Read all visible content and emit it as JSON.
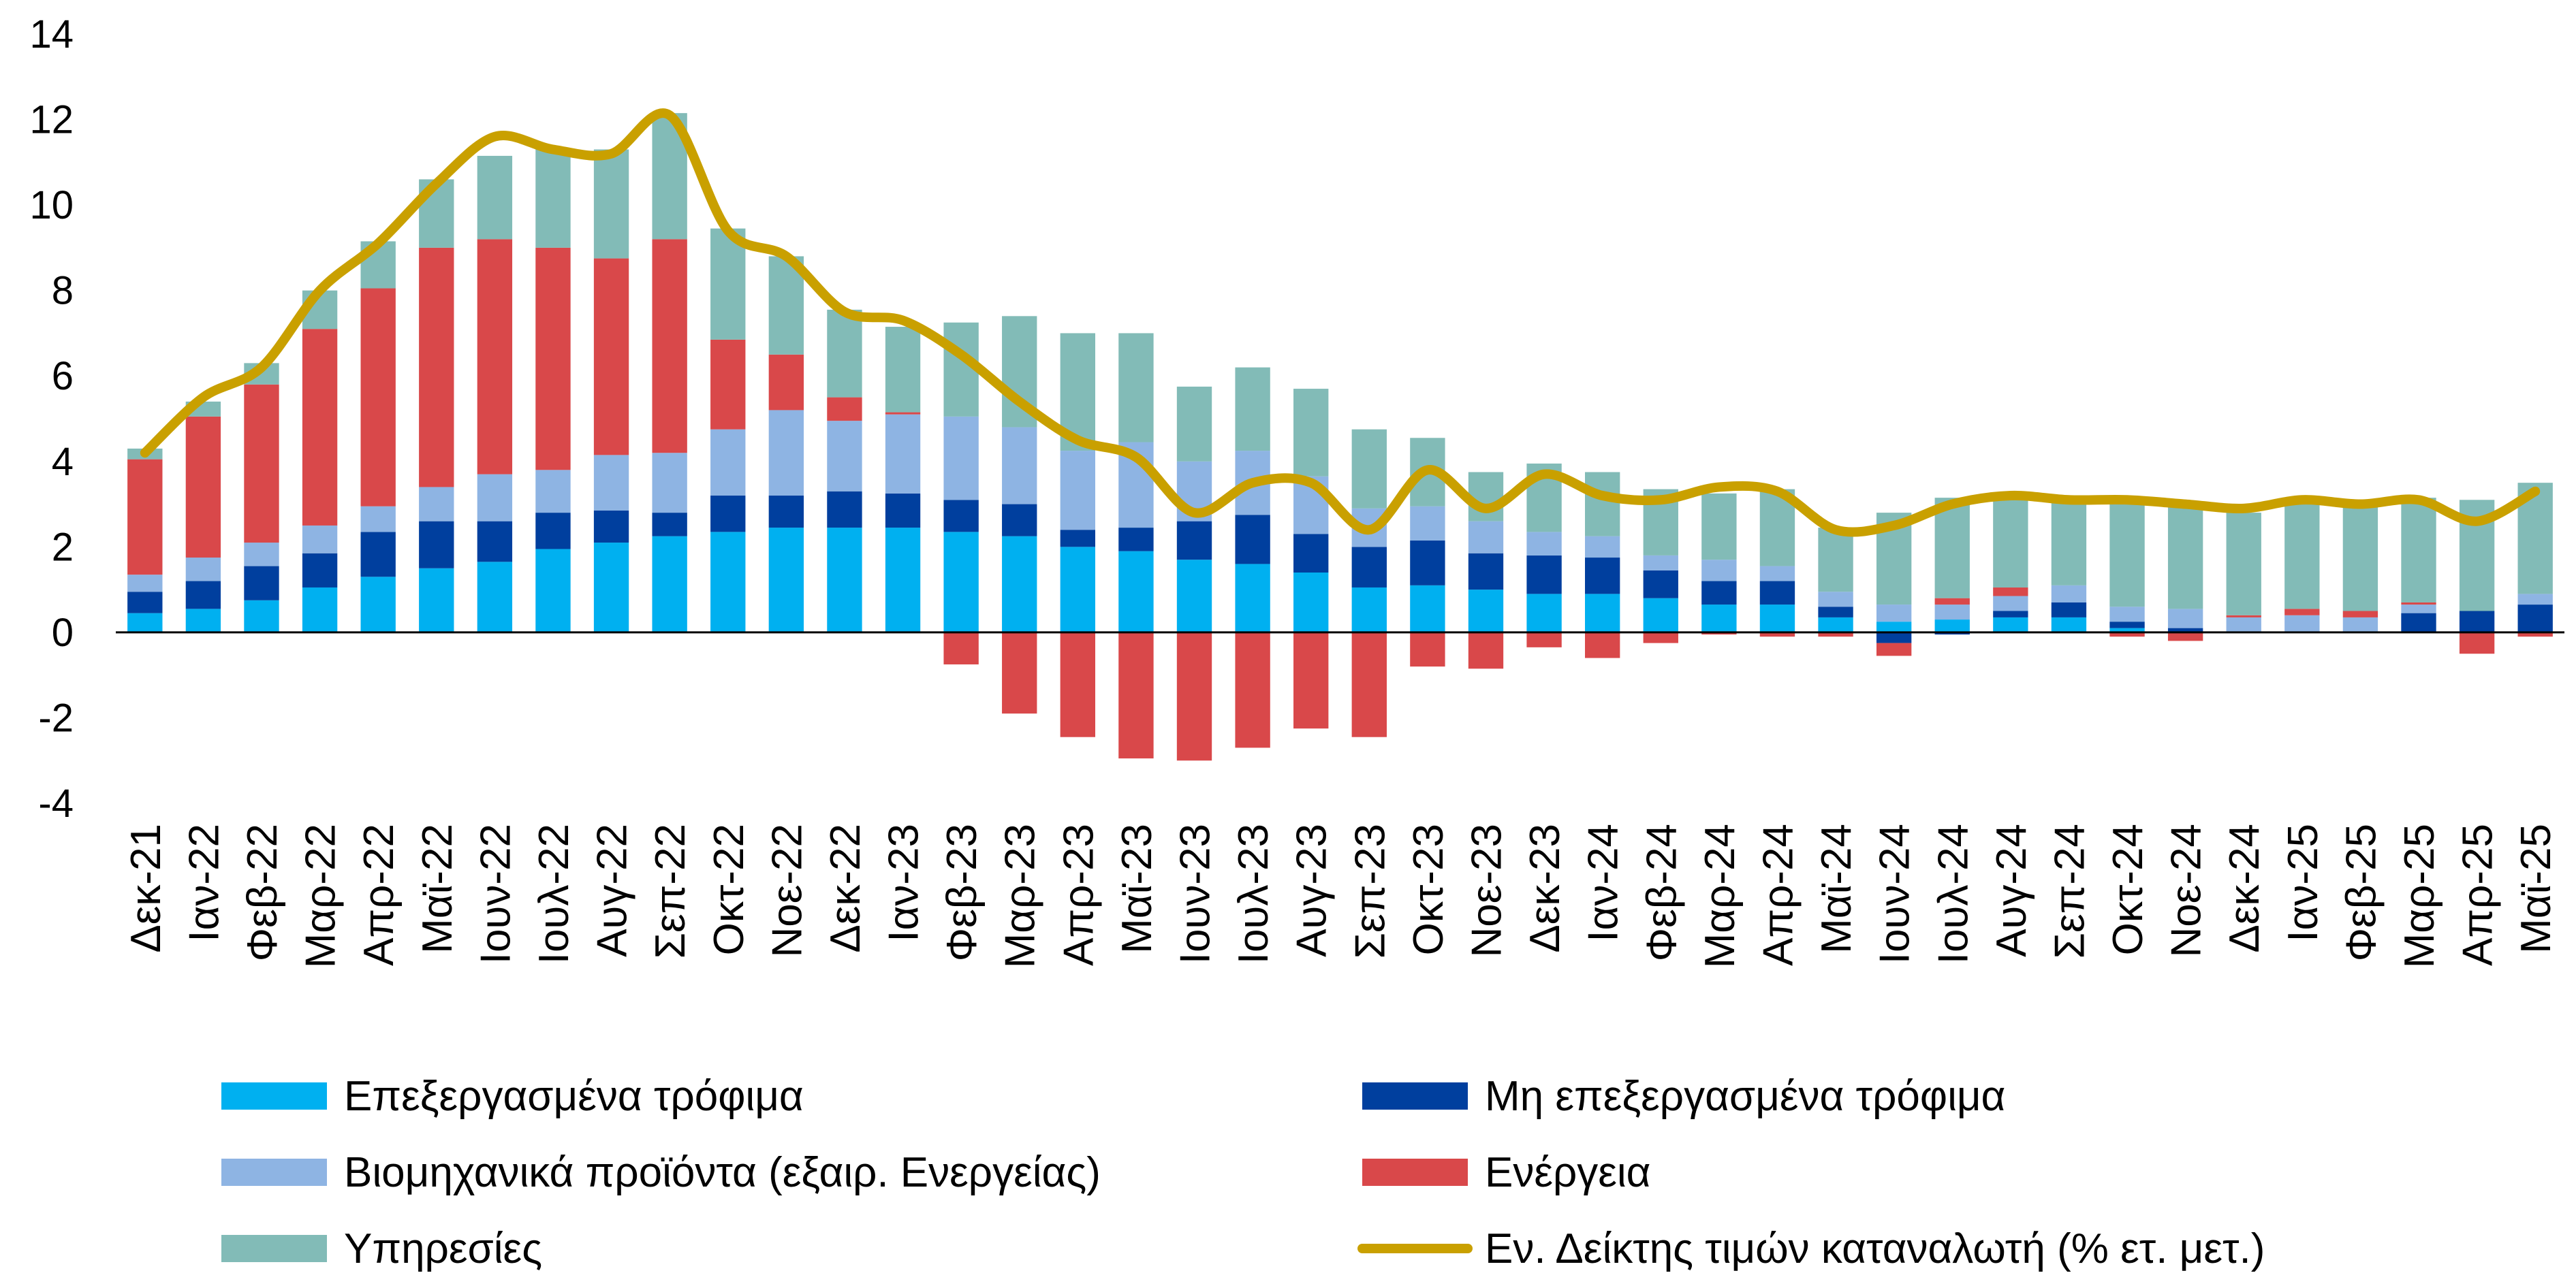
{
  "chart_data": {
    "type": "bar",
    "title": "",
    "xlabel": "",
    "ylabel": "",
    "ylim": [
      -4,
      14
    ],
    "yticks": [
      -4,
      -2,
      0,
      2,
      4,
      6,
      8,
      10,
      12,
      14
    ],
    "grid": false,
    "legend_position": "bottom",
    "stacked": true,
    "categories": [
      "Δεκ-21",
      "Ιαν-22",
      "Φεβ-22",
      "Μαρ-22",
      "Απρ-22",
      "Μαϊ-22",
      "Ιουν-22",
      "Ιουλ-22",
      "Αυγ-22",
      "Σεπ-22",
      "Οκτ-22",
      "Νοε-22",
      "Δεκ-22",
      "Ιαν-23",
      "Φεβ-23",
      "Μαρ-23",
      "Απρ-23",
      "Μαϊ-23",
      "Ιουν-23",
      "Ιουλ-23",
      "Αυγ-23",
      "Σεπ-23",
      "Οκτ-23",
      "Νοε-23",
      "Δεκ-23",
      "Ιαν-24",
      "Φεβ-24",
      "Μαρ-24",
      "Απρ-24",
      "Μαϊ-24",
      "Ιουν-24",
      "Ιουλ-24",
      "Αυγ-24",
      "Σεπ-24",
      "Οκτ-24",
      "Νοε-24",
      "Δεκ-24",
      "Ιαν-25",
      "Φεβ-25",
      "Μαρ-25",
      "Απρ-25",
      "Μαϊ-25"
    ],
    "series": [
      {
        "name": "Επεξεργασμένα τρόφιμα",
        "color": "#00b0f0",
        "kind": "bar",
        "values": [
          0.45,
          0.55,
          0.75,
          1.05,
          1.3,
          1.5,
          1.65,
          1.95,
          2.1,
          2.25,
          2.35,
          2.45,
          2.45,
          2.45,
          2.35,
          2.25,
          2.0,
          1.9,
          1.7,
          1.6,
          1.4,
          1.05,
          1.1,
          1.0,
          0.9,
          0.9,
          0.8,
          0.65,
          0.65,
          0.35,
          0.25,
          0.3,
          0.35,
          0.35,
          0.1,
          0.0,
          0.0,
          0.0,
          0.0,
          0.0,
          0.0,
          0.0
        ]
      },
      {
        "name": "Μη επεξεργασμένα τρόφιμα",
        "color": "#003f9e",
        "kind": "bar",
        "values": [
          0.5,
          0.65,
          0.8,
          0.8,
          1.05,
          1.1,
          0.95,
          0.85,
          0.75,
          0.55,
          0.85,
          0.75,
          0.85,
          0.8,
          0.75,
          0.75,
          0.4,
          0.55,
          0.9,
          1.15,
          0.9,
          0.95,
          1.05,
          0.85,
          0.9,
          0.85,
          0.65,
          0.55,
          0.55,
          0.25,
          -0.25,
          -0.05,
          0.15,
          0.35,
          0.15,
          0.1,
          0.0,
          0.0,
          0.0,
          0.45,
          0.5,
          0.65
        ]
      },
      {
        "name": "Βιομηχανικά προϊόντα (εξαιρ. Ενεργείας)",
        "color": "#8eb4e3",
        "kind": "bar",
        "values": [
          0.4,
          0.55,
          0.55,
          0.65,
          0.6,
          0.8,
          1.1,
          1.0,
          1.3,
          1.4,
          1.55,
          2.0,
          1.65,
          1.85,
          1.95,
          1.8,
          1.85,
          2.0,
          1.4,
          1.5,
          1.35,
          0.9,
          0.8,
          0.75,
          0.55,
          0.5,
          0.35,
          0.5,
          0.35,
          0.35,
          0.4,
          0.35,
          0.35,
          0.4,
          0.35,
          0.45,
          0.35,
          0.4,
          0.35,
          0.2,
          0.0,
          0.25
        ]
      },
      {
        "name": "Ενέργεια",
        "color": "#d9484a",
        "kind": "bar",
        "values": [
          2.7,
          3.3,
          3.7,
          4.6,
          5.1,
          5.6,
          5.5,
          5.2,
          4.6,
          5.0,
          2.1,
          1.3,
          0.55,
          0.05,
          -0.75,
          -1.9,
          -2.45,
          -2.95,
          -3.0,
          -2.7,
          -2.25,
          -2.45,
          -0.8,
          -0.85,
          -0.35,
          -0.6,
          -0.25,
          -0.05,
          -0.1,
          -0.1,
          -0.3,
          0.15,
          0.2,
          0.0,
          -0.1,
          -0.2,
          0.05,
          0.15,
          0.15,
          0.05,
          -0.5,
          -0.1
        ]
      },
      {
        "name": "Υπηρεσίες",
        "color": "#82bbb7",
        "kind": "bar",
        "values": [
          0.25,
          0.35,
          0.5,
          0.9,
          1.1,
          1.6,
          1.95,
          2.3,
          2.55,
          2.95,
          2.6,
          2.3,
          2.05,
          2.0,
          2.2,
          2.6,
          2.75,
          2.55,
          1.75,
          1.95,
          2.05,
          1.85,
          1.6,
          1.15,
          1.6,
          1.5,
          1.55,
          1.55,
          1.8,
          1.5,
          2.15,
          2.35,
          2.2,
          2.1,
          2.45,
          2.45,
          2.4,
          2.5,
          2.45,
          2.45,
          2.6,
          2.6
        ]
      },
      {
        "name": "Εν. Δείκτης τιμών καταναλωτή (% ετ. μετ.)",
        "color": "#c9a000",
        "kind": "line",
        "values": [
          4.2,
          5.5,
          6.2,
          8.0,
          9.1,
          10.5,
          11.6,
          11.3,
          11.2,
          12.1,
          9.4,
          8.8,
          7.5,
          7.3,
          6.5,
          5.4,
          4.5,
          4.1,
          2.8,
          3.5,
          3.5,
          2.4,
          3.8,
          2.9,
          3.7,
          3.2,
          3.1,
          3.4,
          3.3,
          2.4,
          2.5,
          3.0,
          3.2,
          3.1,
          3.1,
          3.0,
          2.9,
          3.1,
          3.0,
          3.1,
          2.6,
          3.3
        ]
      }
    ]
  }
}
